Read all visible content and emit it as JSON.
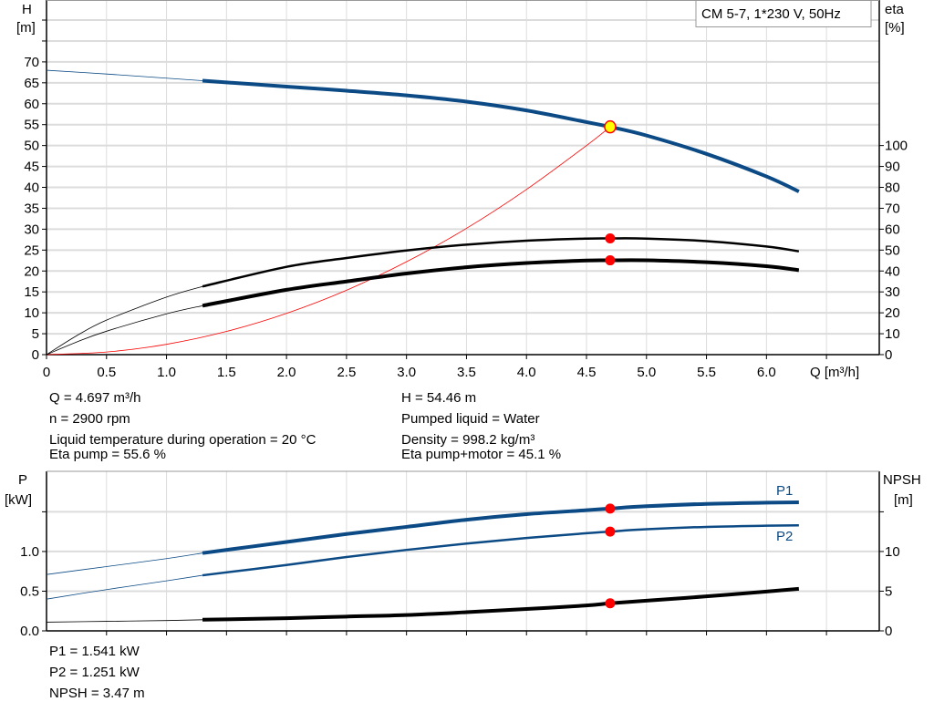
{
  "chart_data": [
    {
      "type": "line",
      "title": "CM 5-7, 1*230 V, 50Hz",
      "xlabel": "Q [m³/h]",
      "ylabel": "H\n[m]",
      "ylabel_lines": [
        "H",
        "[m]"
      ],
      "y2label_lines": [
        "eta",
        "[%]"
      ],
      "xlim": [
        0,
        6.94
      ],
      "ylim": [
        0,
        84.8
      ],
      "y2lim": [
        0,
        169.6
      ],
      "x_ticks": [
        "0",
        "0.5",
        "1.0",
        "1.5",
        "2.0",
        "2.5",
        "3.0",
        "3.5",
        "4.0",
        "4.5",
        "5.0",
        "5.5",
        "6.0"
      ],
      "y_ticks": [
        "0",
        "5",
        "10",
        "15",
        "20",
        "25",
        "30",
        "35",
        "40",
        "45",
        "50",
        "55",
        "60",
        "65",
        "70"
      ],
      "y2_ticks": [
        "0",
        "10",
        "20",
        "30",
        "40",
        "50",
        "60",
        "70",
        "80",
        "90",
        "100"
      ],
      "grid": true,
      "series": [
        {
          "key": "H",
          "axis": "left",
          "color": "#0b4a85",
          "x": [
            0,
            0.5,
            1.0,
            1.3,
            2.0,
            2.5,
            3.0,
            3.5,
            4.0,
            4.5,
            4.697,
            5.0,
            5.5,
            6.0,
            6.27
          ],
          "y": [
            68,
            67.1,
            66.1,
            65.5,
            64.1,
            63.1,
            62.0,
            60.5,
            58.4,
            55.6,
            54.46,
            52.4,
            48.0,
            42.6,
            39.0
          ]
        },
        {
          "key": "eta_pump",
          "axis": "right",
          "color": "#000000",
          "x": [
            0,
            0.25,
            0.5,
            1.0,
            1.3,
            2.0,
            2.5,
            3.0,
            3.5,
            4.0,
            4.5,
            4.697,
            5.0,
            5.5,
            6.0,
            6.27
          ],
          "y": [
            0,
            9,
            16.5,
            27.5,
            32.6,
            42,
            46.2,
            49.8,
            52.6,
            54.5,
            55.5,
            55.6,
            55.5,
            54.3,
            51.7,
            49.4
          ]
        },
        {
          "key": "eta_pump_motor",
          "axis": "right",
          "color": "#000000",
          "x": [
            0,
            0.25,
            0.5,
            1.0,
            1.3,
            2.0,
            2.5,
            3.0,
            3.5,
            4.0,
            4.5,
            4.697,
            5.0,
            5.5,
            6.0,
            6.27
          ],
          "y": [
            0,
            6,
            11.2,
            19.5,
            23.4,
            31,
            35,
            38.8,
            41.8,
            43.8,
            45.0,
            45.1,
            45.1,
            44.2,
            42.3,
            40.4
          ]
        },
        {
          "key": "system_curve",
          "axis": "left",
          "color": "#ff0000",
          "x": [
            0,
            0.5,
            1.0,
            1.5,
            2.0,
            2.5,
            3.0,
            3.5,
            4.0,
            4.5,
            4.697
          ],
          "y": [
            0,
            0.62,
            2.47,
            5.55,
            9.87,
            15.4,
            22.2,
            30.2,
            39.5,
            50.0,
            54.46
          ]
        }
      ],
      "operating_point": {
        "Q": 4.697,
        "H": 54.46,
        "eta_pump": 55.6,
        "eta_pump_motor": 45.1
      }
    },
    {
      "type": "line",
      "ylabel_lines": [
        "P",
        "[kW]"
      ],
      "y2label_lines": [
        "NPSH",
        "[m]"
      ],
      "xlim": [
        0,
        6.94
      ],
      "ylim": [
        0,
        2.01
      ],
      "y2lim": [
        0,
        20.1
      ],
      "y_ticks": [
        "0.0",
        "0.5",
        "1.0"
      ],
      "y2_ticks": [
        "0",
        "5",
        "10"
      ],
      "grid": true,
      "series": [
        {
          "key": "P1",
          "name": "P1",
          "axis": "left",
          "color": "#0b4a85",
          "x": [
            0,
            0.5,
            1.0,
            1.3,
            2.0,
            2.5,
            3.0,
            3.5,
            4.0,
            4.5,
            4.697,
            5.0,
            5.5,
            6.0,
            6.27
          ],
          "y": [
            0.71,
            0.81,
            0.91,
            0.98,
            1.12,
            1.22,
            1.31,
            1.4,
            1.47,
            1.52,
            1.541,
            1.57,
            1.6,
            1.615,
            1.62
          ]
        },
        {
          "key": "P2",
          "name": "P2",
          "axis": "left",
          "color": "#0b4a85",
          "x": [
            0,
            0.5,
            1.0,
            1.3,
            2.0,
            2.5,
            3.0,
            3.5,
            4.0,
            4.5,
            4.697,
            5.0,
            5.5,
            6.0,
            6.27
          ],
          "y": [
            0.4,
            0.52,
            0.63,
            0.7,
            0.83,
            0.93,
            1.02,
            1.1,
            1.17,
            1.23,
            1.251,
            1.28,
            1.31,
            1.325,
            1.33
          ]
        },
        {
          "key": "NPSH",
          "axis": "right",
          "color": "#000000",
          "x": [
            0,
            0.5,
            1.0,
            1.3,
            2.0,
            2.5,
            3.0,
            3.5,
            4.0,
            4.5,
            4.697,
            5.0,
            5.5,
            6.0,
            6.27
          ],
          "y": [
            1.1,
            1.2,
            1.3,
            1.4,
            1.6,
            1.8,
            2.0,
            2.35,
            2.75,
            3.2,
            3.47,
            3.8,
            4.35,
            4.95,
            5.3
          ]
        }
      ]
    }
  ],
  "info": {
    "q": "Q = 4.697 m³/h",
    "n": "n = 2900 rpm",
    "temp": "Liquid temperature during operation = 20 °C",
    "eta_pump": "Eta pump = 55.6 %",
    "h": "H = 54.46 m",
    "liquid": "Pumped liquid = Water",
    "density": "Density = 998.2 kg/m³",
    "eta_pm": "Eta pump+motor = 45.1 %",
    "p1": "P1 = 1.541 kW",
    "p2": "P2 = 1.251 kW",
    "npsh": "NPSH = 3.47 m"
  },
  "colors": {
    "pump_curve": "#0b4a85",
    "duty_point": "#ff0000",
    "duty_point_fill": "#ffff00",
    "grid": "#dcdcdc"
  }
}
